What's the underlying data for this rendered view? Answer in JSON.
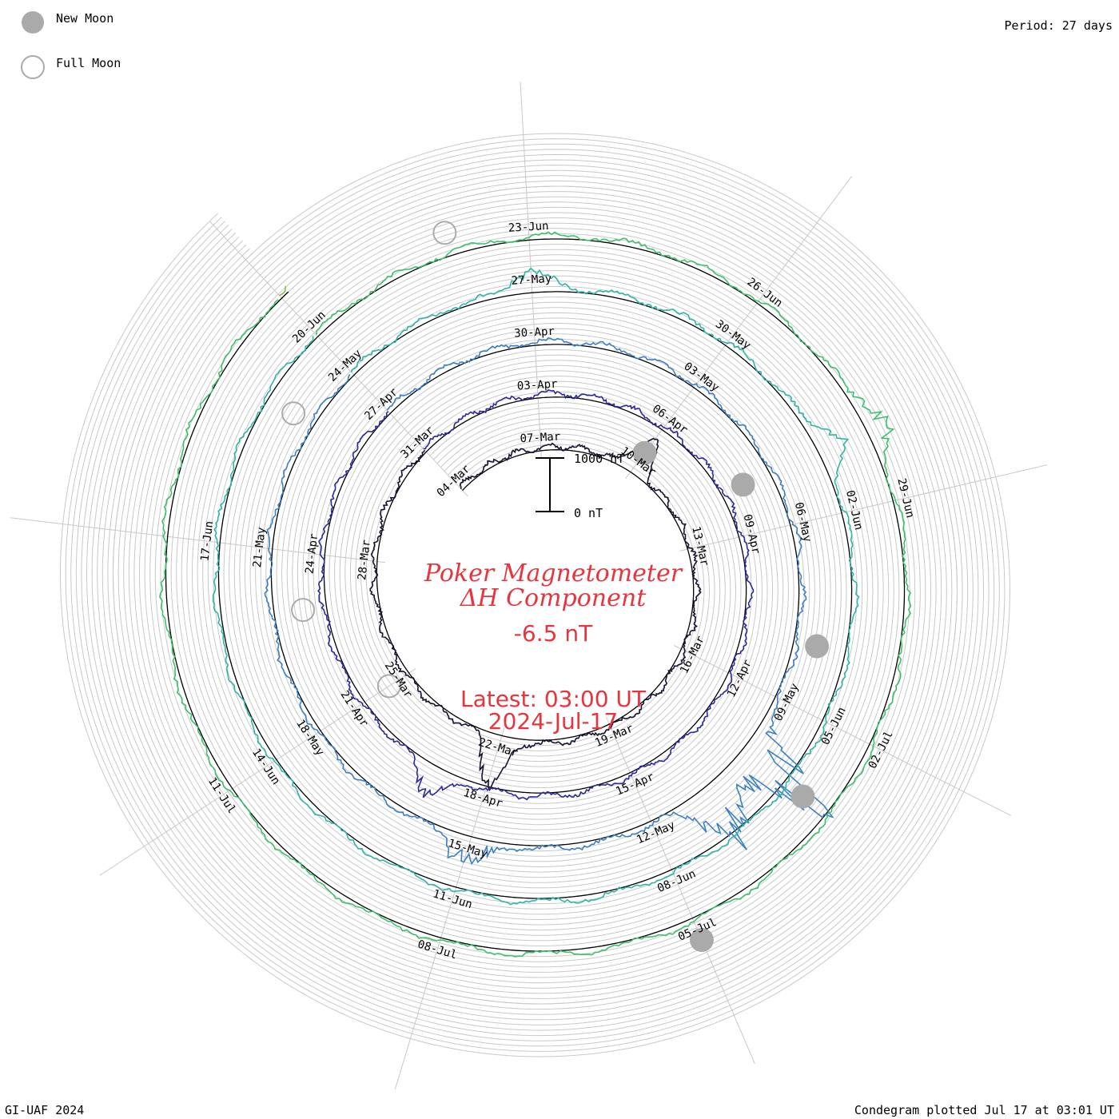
{
  "legend": {
    "new_moon_label": "New Moon",
    "full_moon_label": "Full Moon"
  },
  "period_label": "Period: 27 days",
  "credit": "GI-UAF 2024",
  "plotted_label": "Condegram plotted Jul 17 at 03:01 UT",
  "scale_bar": {
    "top_label": "1000 nT",
    "bottom_label": "0 nT"
  },
  "title_line1": "Poker Magnetometer",
  "title_line2": "ΔH Component",
  "current_value": "-6.5 nT",
  "latest_time": "Latest: 03:00 UT",
  "latest_date": "2024-Jul-17",
  "colors": {
    "title": "#e8343c",
    "grid": "#c8c8c8",
    "baseline": "#000000",
    "moon_fill": "#aaaaaa"
  },
  "chart_data": {
    "type": "line",
    "coordinate_system": "polar-spiral",
    "period_days": 27,
    "value_unit": "nT",
    "scale_nT": [
      0,
      1000
    ],
    "ticks_per_turn": 9,
    "tick_step_days": 3,
    "x_start": "2024-03-04",
    "x_end": "2024-07-17",
    "date_labels": [
      "04-Mar",
      "07-Mar",
      "10-Mar",
      "13-Mar",
      "16-Mar",
      "19-Mar",
      "22-Mar",
      "25-Mar",
      "28-Mar",
      "31-Mar",
      "03-Apr",
      "06-Apr",
      "09-Apr",
      "12-Apr",
      "15-Apr",
      "18-Apr",
      "21-Apr",
      "24-Apr",
      "27-Apr",
      "30-Apr",
      "03-May",
      "06-May",
      "09-May",
      "12-May",
      "15-May",
      "18-May",
      "21-May",
      "24-May",
      "27-May",
      "30-May",
      "02-Jun",
      "05-Jun",
      "08-Jun",
      "11-Jun",
      "14-Jun",
      "17-Jun",
      "20-Jun",
      "23-Jun",
      "26-Jun",
      "29-Jun",
      "02-Jul",
      "05-Jul",
      "08-Jul",
      "11-Jul"
    ],
    "series_colors": [
      "#141432",
      "#2a2a9c",
      "#3b7fc4",
      "#2fb4a8",
      "#3cc06a",
      "#7ac23a",
      "#b8a822",
      "#c8781e",
      "#c8321e"
    ],
    "events": [
      {
        "date": "2024-03-10",
        "value_nT": 700,
        "variation_nT": 0
      },
      {
        "date": "2024-03-22",
        "value_nT": 900,
        "variation_nT": 350
      },
      {
        "date": "2024-04-19",
        "value_nT": 450,
        "variation_nT": 250
      },
      {
        "date": "2024-05-10",
        "value_nT": 1300,
        "variation_nT": 1600
      },
      {
        "date": "2024-05-11",
        "value_nT": 1100,
        "variation_nT": 1400
      },
      {
        "date": "2024-05-15",
        "value_nT": 400,
        "variation_nT": 400
      },
      {
        "date": "2024-05-27",
        "value_nT": 350,
        "variation_nT": 200
      },
      {
        "date": "2024-06-01",
        "value_nT": 400,
        "variation_nT": 250
      },
      {
        "date": "2024-06-28",
        "value_nT": 300,
        "variation_nT": 350
      }
    ],
    "new_moons": [
      "2024-03-10",
      "2024-04-08",
      "2024-05-08",
      "2024-06-06",
      "2024-07-05"
    ],
    "full_moons": [
      "2024-03-25",
      "2024-04-23",
      "2024-05-23",
      "2024-06-22"
    ]
  }
}
